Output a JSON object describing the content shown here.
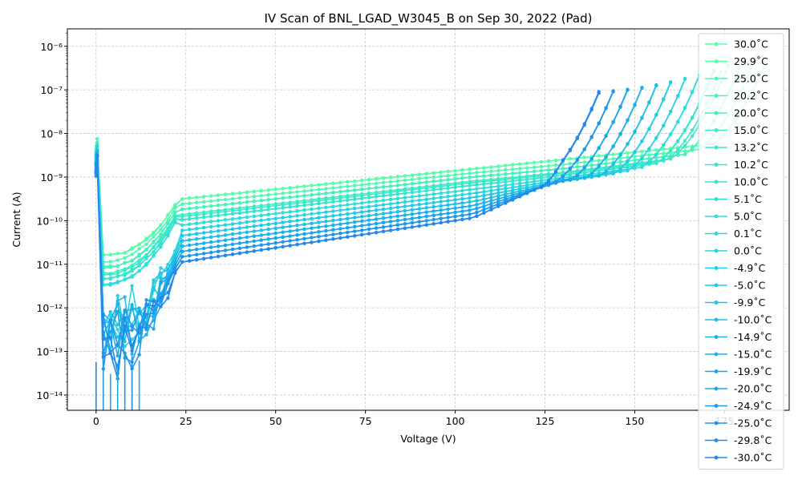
{
  "chart_data": {
    "type": "line",
    "title": "IV Scan of BNL_LGAD_W3045_B on Sep 30, 2022 (Pad)",
    "xlabel": "Voltage (V)",
    "ylabel": "Current (A)",
    "xlim": [
      -8,
      193
    ],
    "ylim_log10": [
      -14.35,
      -5.6
    ],
    "yscale": "log",
    "grid": true,
    "legend_position": "right",
    "x_ticks": [
      {
        "value": 0,
        "label": "0"
      },
      {
        "value": 25,
        "label": "25"
      },
      {
        "value": 50,
        "label": "50"
      },
      {
        "value": 75,
        "label": "75"
      },
      {
        "value": 100,
        "label": "100"
      },
      {
        "value": 125,
        "label": "125"
      },
      {
        "value": 150,
        "label": "150"
      },
      {
        "value": 175,
        "label": "175"
      }
    ],
    "y_ticks": [
      {
        "exp": -14,
        "label": "10⁻¹⁴"
      },
      {
        "exp": -13,
        "label": "10⁻¹³"
      },
      {
        "exp": -12,
        "label": "10⁻¹²"
      },
      {
        "exp": -11,
        "label": "10⁻¹¹"
      },
      {
        "exp": -10,
        "label": "10⁻¹⁰"
      },
      {
        "exp": -9,
        "label": "10⁻⁹"
      },
      {
        "exp": -8,
        "label": "10⁻⁸"
      },
      {
        "exp": -7,
        "label": "10⁻⁷"
      },
      {
        "exp": -6,
        "label": "10⁻⁶"
      }
    ],
    "series": [
      {
        "name": "30.0˚C",
        "temp": 30.0,
        "color": "#5affa8"
      },
      {
        "name": "29.9˚C",
        "temp": 29.9,
        "color": "#59feaa"
      },
      {
        "name": "25.0˚C",
        "temp": 25.0,
        "color": "#51f8b3"
      },
      {
        "name": "20.2˚C",
        "temp": 20.2,
        "color": "#49f1bb"
      },
      {
        "name": "20.0˚C",
        "temp": 20.0,
        "color": "#48f0bc"
      },
      {
        "name": "15.0˚C",
        "temp": 15.0,
        "color": "#40eac5"
      },
      {
        "name": "13.2˚C",
        "temp": 13.2,
        "color": "#3de8c8"
      },
      {
        "name": "10.2˚C",
        "temp": 10.2,
        "color": "#39e5cd"
      },
      {
        "name": "10.0˚C",
        "temp": 10.0,
        "color": "#38e4ce"
      },
      {
        "name": "5.1˚C",
        "temp": 5.1,
        "color": "#30ddd7"
      },
      {
        "name": "5.0˚C",
        "temp": 5.0,
        "color": "#30ddd7"
      },
      {
        "name": "0.1˚C",
        "temp": 0.1,
        "color": "#28d6e0"
      },
      {
        "name": "0.0˚C",
        "temp": 0.0,
        "color": "#27d5e0"
      },
      {
        "name": "-4.9˚C",
        "temp": -4.9,
        "color": "#22cbe3"
      },
      {
        "name": "-5.0˚C",
        "temp": -5.0,
        "color": "#22cbe3"
      },
      {
        "name": "-9.9˚C",
        "temp": -9.9,
        "color": "#1fbfe6"
      },
      {
        "name": "-10.0˚C",
        "temp": -10.0,
        "color": "#1fbfe6"
      },
      {
        "name": "-14.9˚C",
        "temp": -14.9,
        "color": "#1cb2e9"
      },
      {
        "name": "-15.0˚C",
        "temp": -15.0,
        "color": "#1cb2e9"
      },
      {
        "name": "-19.9˚C",
        "temp": -19.9,
        "color": "#1aa5ec"
      },
      {
        "name": "-20.0˚C",
        "temp": -20.0,
        "color": "#1aa5ec"
      },
      {
        "name": "-24.9˚C",
        "temp": -24.9,
        "color": "#1e97ec"
      },
      {
        "name": "-25.0˚C",
        "temp": -25.0,
        "color": "#1e97ec"
      },
      {
        "name": "-29.8˚C",
        "temp": -29.8,
        "color": "#2589eb"
      },
      {
        "name": "-30.0˚C",
        "temp": -30.0,
        "color": "#2688eb"
      }
    ]
  }
}
